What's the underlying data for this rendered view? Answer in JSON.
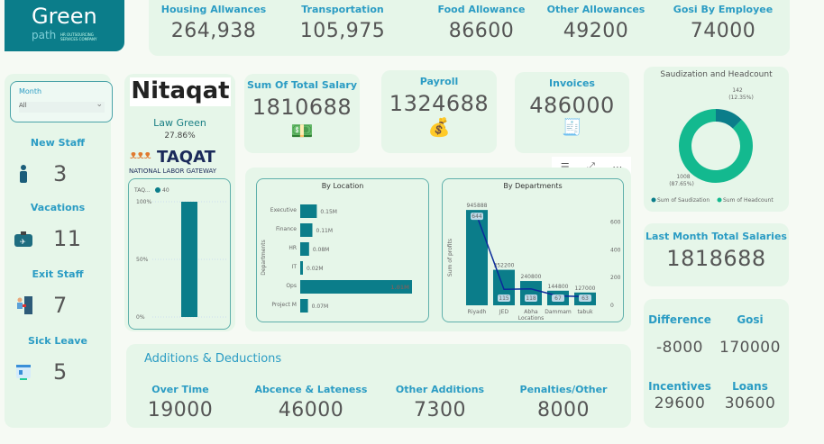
{
  "logo": {
    "text_main": "Green",
    "text_sub": "path",
    "tagline": "HR OUTSOURCING SERVICES COMPANY"
  },
  "top_metrics": [
    {
      "label": "Housing Allwances",
      "value": "264,938"
    },
    {
      "label": "Transportation",
      "value": "105,975"
    },
    {
      "label": "Food Allowance",
      "value": "86600"
    },
    {
      "label": "Other Allowances",
      "value": "49200"
    },
    {
      "label": "Gosi By Employee",
      "value": "74000"
    }
  ],
  "slicer": {
    "label": "Month",
    "value": "All"
  },
  "left_stats": [
    {
      "label": "New Staff",
      "value": "3",
      "icon": "employee-icon"
    },
    {
      "label": "Vacations",
      "value": "11",
      "icon": "suitcase-plane-icon"
    },
    {
      "label": "Exit Staff",
      "value": "7",
      "icon": "exit-door-icon"
    },
    {
      "label": "Sick Leave",
      "value": "5",
      "icon": "medical-card-icon"
    }
  ],
  "nitaqat": {
    "logo_text": "Nitaqat",
    "label": "Law Green",
    "percent": "27.86%",
    "taqat_logo": "TAQAT",
    "taqat_sub": "NATIONAL LABOR GATEWAY",
    "mini_chart": {
      "legend_title": "TAQ...",
      "legend_value": "40",
      "ticks": [
        "100%",
        "50%",
        "0%"
      ],
      "value_pct": 100,
      "color": "#0b7d8a"
    }
  },
  "kpis": [
    {
      "label": "Sum Of Total Salary",
      "value": "1810688",
      "icon": "money-hand-icon"
    },
    {
      "label": "Payroll",
      "value": "1324688",
      "icon": "money-bag-icon"
    },
    {
      "label": "Invoices",
      "value": "486000",
      "icon": "invoice-icon"
    }
  ],
  "chart_data": [
    {
      "type": "bar",
      "orientation": "horizontal",
      "title": "By Location",
      "ylabel": "Departments",
      "categories": [
        "Executive",
        "Finance",
        "HR",
        "IT",
        "Ops",
        "Project M"
      ],
      "values": [
        0.15,
        0.11,
        0.08,
        0.02,
        1.01,
        0.07
      ],
      "labels": [
        "0.15M",
        "0.11M",
        "0.08M",
        "0.02M",
        "1.01M",
        "0.07M"
      ],
      "color": "#0b7d8a"
    },
    {
      "type": "bar",
      "title": "By Departments",
      "xlabel": "Locations",
      "ylabel": "Sum of profits",
      "categories": [
        "Riyadh",
        "JED",
        "Abha",
        "Dammam",
        "tabuk"
      ],
      "series": [
        {
          "values": [
            945888,
            352200,
            240800,
            144800,
            127000
          ],
          "color": "#0b7d8a"
        },
        {
          "type": "line",
          "values": [
            644,
            115,
            118,
            67,
            63
          ],
          "color": "#0a2a9a",
          "axis": "right"
        }
      ],
      "y2_ticks": [
        "600",
        "400",
        "200",
        "0"
      ],
      "y2lim": [
        0,
        700
      ]
    },
    {
      "type": "pie",
      "title": "Saudization and Headcount",
      "donut": true,
      "series": [
        {
          "name": "Sum of Saudization",
          "value": 142,
          "label": "142",
          "pct": "(12.35%)",
          "color": "#0b7d8a"
        },
        {
          "name": "Sum of Headcount",
          "value": 1008,
          "label": "1008",
          "pct": "(87.65%)",
          "color": "#13b98f"
        }
      ],
      "legend": "bottom"
    }
  ],
  "last_month": {
    "label": "Last Month Total Salaries",
    "value": "1818688"
  },
  "diff": [
    {
      "label": "Difference",
      "value": "-8000"
    },
    {
      "label": "Gosi",
      "value": "170000"
    },
    {
      "label": "Incentives",
      "value": "29600"
    },
    {
      "label": "Loans",
      "value": "30600"
    }
  ],
  "additions": {
    "title": "Additions & Deductions",
    "items": [
      {
        "label": "Over Time",
        "value": "19000"
      },
      {
        "label": "Abcence & Lateness",
        "value": "46000"
      },
      {
        "label": "Other Additions",
        "value": "7300"
      },
      {
        "label": "Penalties/Other",
        "value": "8000"
      }
    ]
  },
  "colors": {
    "accent": "#0b7d8a",
    "title": "#2b9cc4",
    "card": "#e6f6e9"
  }
}
